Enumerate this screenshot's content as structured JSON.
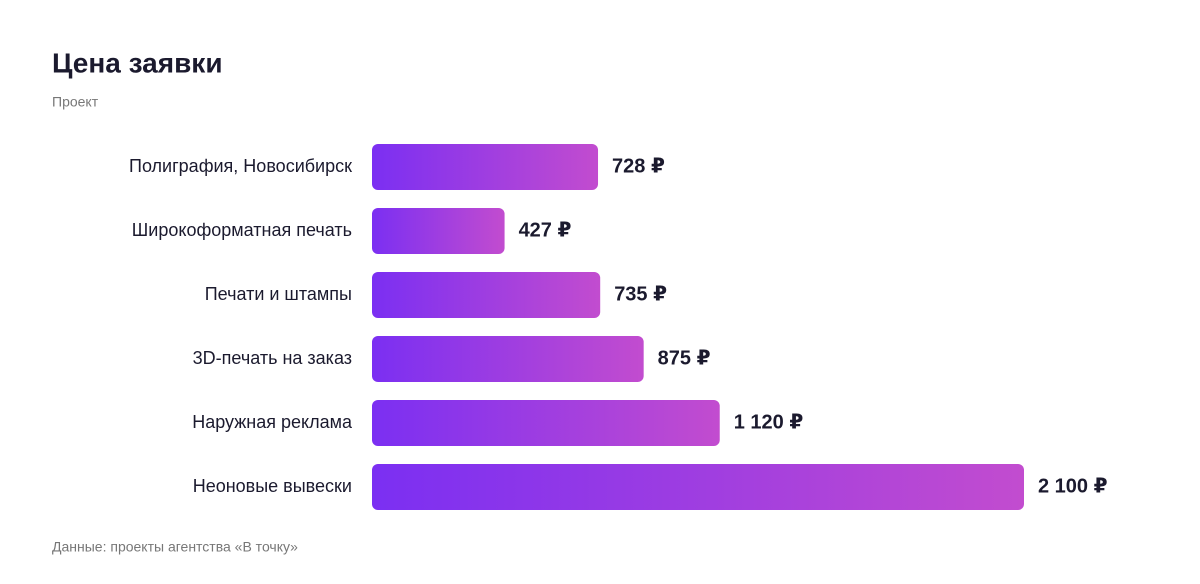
{
  "chart_data": {
    "type": "bar",
    "orientation": "horizontal",
    "title": "Цена заявки",
    "subtitle": "Проект",
    "categories": [
      "Полиграфия, Новосибирск",
      "Широкоформатная печать",
      "Печати и штампы",
      "3D-печать на заказ",
      "Наружная реклама",
      "Неоновые вывески"
    ],
    "values": [
      728,
      427,
      735,
      875,
      1120,
      2100
    ],
    "value_labels": [
      "728 ₽",
      "427 ₽",
      "735 ₽",
      "875 ₽",
      "1 120 ₽",
      "2 100 ₽"
    ],
    "gradient": [
      "#7b2ff2",
      "#c24ccf"
    ],
    "note": "Данные: проекты агентства «В точку»"
  }
}
